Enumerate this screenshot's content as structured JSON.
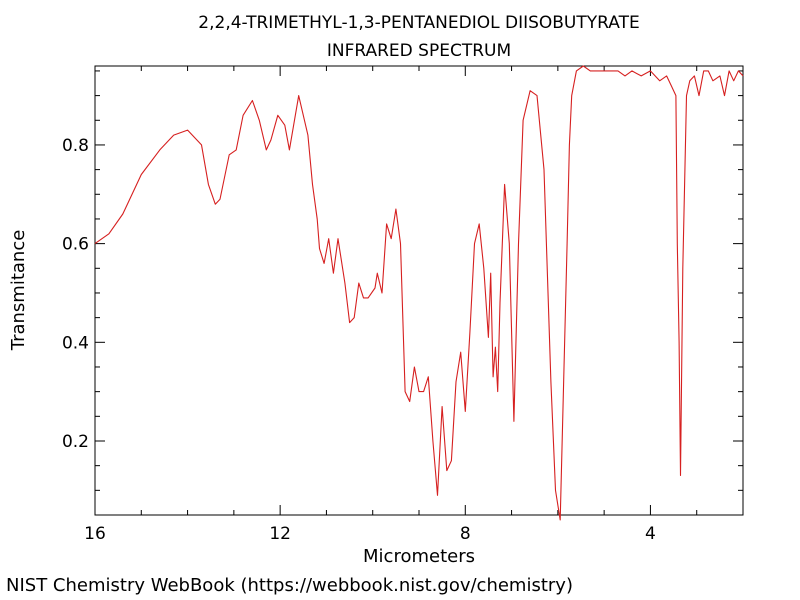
{
  "chart_data": {
    "type": "line",
    "title": "2,2,4-TRIMETHYL-1,3-PENTANEDIOL DIISOBUTYRATE",
    "subtitle": "INFRARED SPECTRUM",
    "xlabel": "Micrometers",
    "ylabel": "Transmitance",
    "xlim": [
      16,
      2
    ],
    "ylim": [
      0.05,
      0.96
    ],
    "x_ticks": [
      16,
      12,
      8,
      4
    ],
    "y_ticks": [
      0.2,
      0.4,
      0.6,
      0.8
    ],
    "grid": false,
    "line_color": "#d62020",
    "series": [
      {
        "x": [
          16.0,
          15.7,
          15.4,
          15.0,
          14.6,
          14.3,
          14.0,
          13.7,
          13.55,
          13.4,
          13.3,
          13.1,
          12.95,
          12.8,
          12.6,
          12.45,
          12.3,
          12.2,
          12.05,
          11.9,
          11.8,
          11.6,
          11.4,
          11.3,
          11.2,
          11.15,
          11.05,
          10.95,
          10.85,
          10.75,
          10.6,
          10.5,
          10.4,
          10.3,
          10.2,
          10.1,
          9.95,
          9.9,
          9.8,
          9.7,
          9.6,
          9.5,
          9.4,
          9.3,
          9.2,
          9.1,
          9.0,
          8.9,
          8.8,
          8.7,
          8.6,
          8.5,
          8.4,
          8.3,
          8.2,
          8.1,
          8.0,
          7.9,
          7.8,
          7.7,
          7.6,
          7.5,
          7.45,
          7.4,
          7.35,
          7.3,
          7.25,
          7.15,
          7.05,
          6.95,
          6.85,
          6.75,
          6.6,
          6.45,
          6.3,
          6.15,
          6.05,
          5.95,
          5.88,
          5.8,
          5.75,
          5.7,
          5.6,
          5.45,
          5.3,
          5.1,
          4.9,
          4.7,
          4.55,
          4.4,
          4.2,
          4.0,
          3.8,
          3.65,
          3.55,
          3.45,
          3.42,
          3.38,
          3.35,
          3.3,
          3.22,
          3.15,
          3.05,
          2.95,
          2.85,
          2.75,
          2.65,
          2.5,
          2.4,
          2.3,
          2.2,
          2.1,
          2.0
        ],
        "values": [
          0.6,
          0.62,
          0.66,
          0.74,
          0.79,
          0.82,
          0.83,
          0.8,
          0.72,
          0.68,
          0.69,
          0.78,
          0.79,
          0.86,
          0.89,
          0.85,
          0.79,
          0.81,
          0.86,
          0.84,
          0.79,
          0.9,
          0.82,
          0.72,
          0.65,
          0.59,
          0.56,
          0.61,
          0.54,
          0.61,
          0.52,
          0.44,
          0.45,
          0.52,
          0.49,
          0.49,
          0.51,
          0.54,
          0.5,
          0.64,
          0.61,
          0.67,
          0.6,
          0.3,
          0.28,
          0.35,
          0.3,
          0.3,
          0.33,
          0.2,
          0.09,
          0.27,
          0.14,
          0.16,
          0.32,
          0.38,
          0.26,
          0.42,
          0.6,
          0.64,
          0.55,
          0.41,
          0.54,
          0.33,
          0.39,
          0.3,
          0.48,
          0.72,
          0.6,
          0.24,
          0.6,
          0.85,
          0.91,
          0.9,
          0.75,
          0.32,
          0.1,
          0.04,
          0.3,
          0.6,
          0.8,
          0.9,
          0.95,
          0.96,
          0.95,
          0.95,
          0.95,
          0.95,
          0.94,
          0.95,
          0.94,
          0.95,
          0.93,
          0.94,
          0.92,
          0.9,
          0.6,
          0.4,
          0.13,
          0.55,
          0.9,
          0.93,
          0.94,
          0.9,
          0.95,
          0.95,
          0.93,
          0.94,
          0.9,
          0.95,
          0.93,
          0.95,
          0.94
        ]
      }
    ]
  },
  "footer": {
    "credit": "NIST Chemistry WebBook (https://webbook.nist.gov/chemistry)"
  }
}
